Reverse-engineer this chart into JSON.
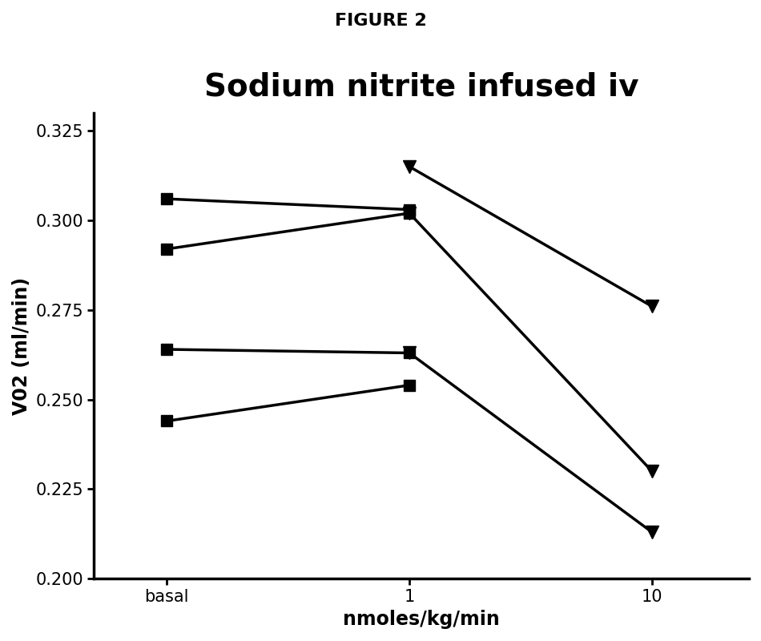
{
  "title": "Sodium nitrite infused iv",
  "suptitle": "FIGURE 2",
  "xlabel": "nmoles/kg/min",
  "ylabel": "V02 (ml/min)",
  "x_labels": [
    "basal",
    "1",
    "10"
  ],
  "x_positions": [
    0,
    1,
    2
  ],
  "series_squares": [
    {
      "x": [
        0,
        1
      ],
      "y": [
        0.306,
        0.303
      ]
    },
    {
      "x": [
        0,
        1
      ],
      "y": [
        0.292,
        0.302
      ]
    },
    {
      "x": [
        0,
        1
      ],
      "y": [
        0.264,
        0.263
      ]
    },
    {
      "x": [
        0,
        1
      ],
      "y": [
        0.244,
        0.254
      ]
    }
  ],
  "series_triangles": [
    {
      "x": [
        1,
        2
      ],
      "y": [
        0.315,
        0.276
      ]
    },
    {
      "x": [
        1,
        2
      ],
      "y": [
        0.302,
        0.23
      ]
    },
    {
      "x": [
        1,
        2
      ],
      "y": [
        0.263,
        0.213
      ]
    }
  ],
  "ylim": [
    0.2,
    0.33
  ],
  "yticks": [
    0.2,
    0.225,
    0.25,
    0.275,
    0.3,
    0.325
  ],
  "line_color": "#000000",
  "background_color": "#ffffff",
  "square_marker_size": 10,
  "triangle_marker_size": 12,
  "line_width": 2.5,
  "title_fontsize": 28,
  "suptitle_fontsize": 16,
  "label_fontsize": 17,
  "tick_fontsize": 15
}
